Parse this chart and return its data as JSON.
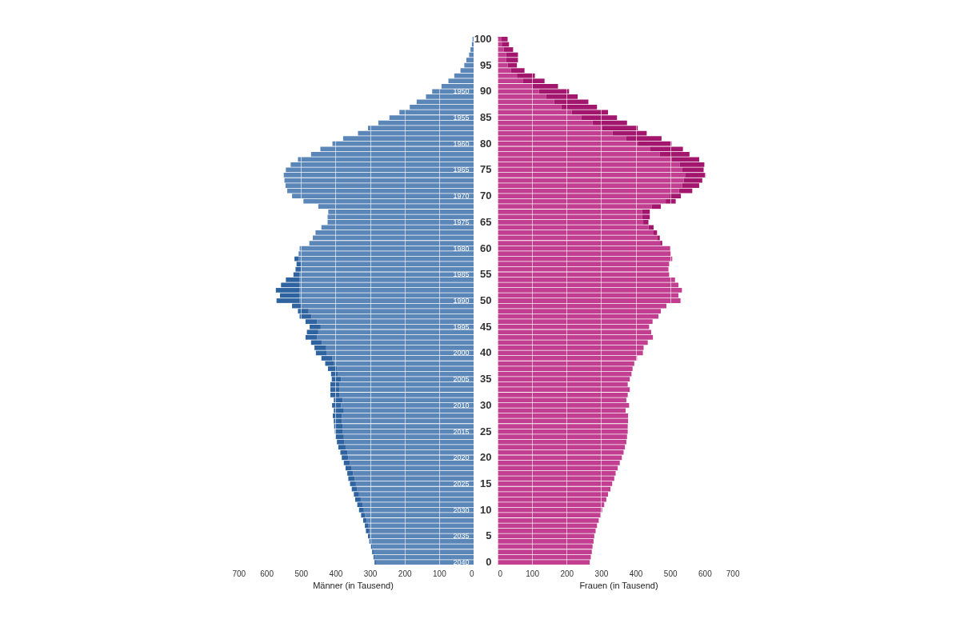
{
  "chart_data": [
    {
      "type": "bar",
      "orientation": "horizontal",
      "stacked": true,
      "xlabel": "Männer (in Tausend)",
      "grid": "x",
      "xlim": [
        700,
        0
      ],
      "xticks": [
        700,
        600,
        500,
        400,
        300,
        200,
        100,
        0
      ],
      "categories": [
        null,
        null,
        null,
        null,
        null,
        null,
        null,
        null,
        null,
        null,
        "1950",
        null,
        null,
        null,
        null,
        "1955",
        null,
        null,
        null,
        null,
        "1960",
        null,
        null,
        null,
        null,
        "1965",
        null,
        null,
        null,
        null,
        "1970",
        null,
        null,
        null,
        null,
        "1975",
        null,
        null,
        null,
        null,
        "1980",
        null,
        null,
        null,
        null,
        "1985",
        null,
        null,
        null,
        null,
        "1990",
        null,
        null,
        null,
        null,
        "1995",
        null,
        null,
        null,
        null,
        "2000",
        null,
        null,
        null,
        null,
        "2005",
        null,
        null,
        null,
        null,
        "2010",
        null,
        null,
        null,
        null,
        "2015",
        null,
        null,
        null,
        null,
        "2020",
        null,
        null,
        null,
        null,
        "2025",
        null,
        null,
        null,
        null,
        "2030",
        null,
        null,
        null,
        null,
        "2035",
        null,
        null,
        null,
        null,
        "2040"
      ],
      "series": [
        {
          "color": "#5b86b8",
          "values": [
            3,
            5,
            9,
            13,
            21,
            27,
            38,
            56,
            73,
            93,
            120,
            138,
            165,
            185,
            215,
            244,
            276,
            306,
            335,
            378,
            409,
            444,
            471,
            509,
            530,
            544,
            550,
            548,
            545,
            540,
            526,
            493,
            450,
            421,
            423,
            423,
            441,
            458,
            466,
            476,
            504,
            507,
            507,
            500,
            500,
            505,
            505,
            505,
            505,
            505,
            505,
            497,
            478,
            470,
            454,
            443,
            450,
            454,
            439,
            427,
            425,
            410,
            404,
            396,
            394,
            384,
            388,
            388,
            388,
            379,
            384,
            376,
            382,
            382,
            380,
            380,
            376,
            374,
            371,
            366,
            363,
            358,
            353,
            349,
            345,
            341,
            337,
            332,
            327,
            322,
            318,
            314,
            310,
            306,
            302,
            300,
            296,
            293,
            290,
            287,
            283
          ]
        },
        {
          "color": "#2e63a0",
          "values": [
            null,
            null,
            null,
            null,
            null,
            null,
            null,
            null,
            null,
            null,
            null,
            null,
            null,
            null,
            null,
            null,
            null,
            null,
            null,
            null,
            null,
            null,
            null,
            null,
            null,
            null,
            null,
            null,
            null,
            null,
            null,
            null,
            null,
            null,
            null,
            null,
            null,
            null,
            null,
            null,
            null,
            null,
            12,
            13,
            16,
            17,
            39,
            53,
            68,
            56,
            66,
            29,
            31,
            34,
            33,
            32,
            33,
            33,
            32,
            34,
            32,
            31,
            26,
            26,
            19,
            27,
            27,
            27,
            27,
            26,
            26,
            29,
            26,
            23,
            24,
            22,
            24,
            22,
            21,
            20,
            19,
            18,
            18,
            17,
            18,
            17,
            16,
            15,
            16,
            15,
            14,
            12,
            10,
            9,
            10,
            6,
            6,
            5,
            4,
            3,
            4
          ]
        }
      ]
    },
    {
      "type": "bar",
      "orientation": "horizontal",
      "stacked": true,
      "xlabel": "Frauen (in Tausend)",
      "grid": "x",
      "xlim": [
        0,
        700
      ],
      "xticks": [
        0,
        100,
        200,
        300,
        400,
        500,
        600,
        700
      ],
      "categories": [
        "100",
        null,
        null,
        null,
        null,
        "95",
        null,
        null,
        null,
        null,
        "90",
        null,
        null,
        null,
        null,
        "85",
        null,
        null,
        null,
        null,
        "80",
        null,
        null,
        null,
        null,
        "75",
        null,
        null,
        null,
        null,
        "70",
        null,
        null,
        null,
        null,
        "65",
        null,
        null,
        null,
        null,
        "60",
        null,
        null,
        null,
        null,
        "55",
        null,
        null,
        null,
        null,
        "50",
        null,
        null,
        null,
        null,
        "45",
        null,
        null,
        null,
        null,
        "40",
        null,
        null,
        null,
        null,
        "35",
        null,
        null,
        null,
        null,
        "30",
        null,
        null,
        null,
        null,
        "25",
        null,
        null,
        null,
        null,
        "20",
        null,
        null,
        null,
        null,
        "15",
        null,
        null,
        null,
        null,
        "10",
        null,
        null,
        null,
        null,
        "5",
        null,
        null,
        null,
        null,
        "0"
      ],
      "series": [
        {
          "color": "#c23e90",
          "values": [
            10,
            12,
            18,
            25,
            25,
            29,
            39,
            56,
            74,
            101,
            120,
            140,
            164,
            185,
            215,
            242,
            275,
            303,
            333,
            373,
            406,
            441,
            469,
            504,
            527,
            535,
            543,
            539,
            535,
            525,
            497,
            487,
            446,
            419,
            419,
            422,
            437,
            452,
            462,
            471,
            500,
            502,
            506,
            497,
            495,
            497,
            514,
            524,
            534,
            524,
            530,
            489,
            473,
            466,
            449,
            439,
            445,
            450,
            435,
            423,
            421,
            404,
            396,
            391,
            388,
            383,
            377,
            383,
            377,
            373,
            381,
            371,
            378,
            378,
            377,
            377,
            375,
            373,
            369,
            365,
            360,
            354,
            348,
            342,
            338,
            332,
            327,
            320,
            315,
            309,
            303,
            298,
            293,
            288,
            284,
            280,
            278,
            275,
            273,
            270,
            267
          ]
        },
        {
          "color": "#a3166d",
          "values": [
            19,
            21,
            27,
            34,
            34,
            27,
            39,
            52,
            62,
            74,
            87,
            92,
            99,
            103,
            105,
            104,
            100,
            103,
            99,
            102,
            98,
            96,
            87,
            80,
            72,
            62,
            60,
            54,
            49,
            39,
            34,
            29,
            27,
            22,
            22,
            15,
            15,
            10,
            8,
            6,
            null,
            null,
            null,
            null,
            null,
            null,
            null,
            null,
            null,
            null,
            null,
            null,
            null,
            null,
            null,
            null,
            null,
            null,
            null,
            null,
            null,
            null,
            null,
            null,
            null,
            null,
            null,
            null,
            null,
            null,
            null,
            null,
            null,
            null,
            null,
            null,
            null,
            null,
            null,
            null,
            null,
            null,
            null,
            null,
            null,
            null,
            null,
            null,
            null,
            null,
            null,
            null,
            null,
            null,
            null,
            null,
            null,
            null,
            null,
            null,
            null
          ]
        }
      ]
    }
  ]
}
